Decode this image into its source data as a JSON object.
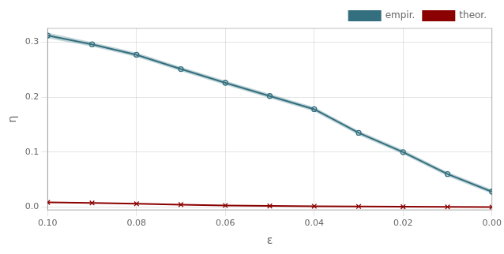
{
  "chart_data": {
    "type": "line",
    "xlabel": "ε",
    "ylabel": "η",
    "x": [
      0.1,
      0.09,
      0.08,
      0.07,
      0.06,
      0.05,
      0.04,
      0.03,
      0.02,
      0.01,
      0.0
    ],
    "series": [
      {
        "name": "empir.",
        "color": "#336f7e",
        "marker": "o",
        "line_style": "solid",
        "values": [
          0.312,
          0.296,
          0.277,
          0.251,
          0.226,
          0.202,
          0.178,
          0.135,
          0.1,
          0.06,
          0.028
        ],
        "upper": [
          0.317,
          0.3,
          0.281,
          0.255,
          0.23,
          0.206,
          0.182,
          0.139,
          0.104,
          0.064,
          0.032
        ],
        "lower": [
          0.307,
          0.292,
          0.273,
          0.247,
          0.222,
          0.198,
          0.174,
          0.131,
          0.096,
          0.056,
          0.024
        ]
      },
      {
        "name": "theor.",
        "color": "#8b0000",
        "marker": "x",
        "line_style": "solid",
        "values": [
          0.0085,
          0.0075,
          0.006,
          0.0045,
          0.003,
          0.002,
          0.0015,
          0.001,
          0.0006,
          0.0003,
          0.0001
        ]
      }
    ],
    "xlim": [
      0.1,
      0.0
    ],
    "xticks": [
      {
        "value": 0.1,
        "label": "0.10"
      },
      0.08,
      0.06,
      0.04,
      0.02,
      {
        "value": 0.0,
        "label": "0.00"
      }
    ],
    "ylim": [
      -0.005,
      0.325
    ],
    "yticks": [
      {
        "value": 0.0,
        "label": "0.0"
      },
      0.1,
      0.2,
      0.3
    ],
    "grid": true,
    "legend": "upper right"
  }
}
